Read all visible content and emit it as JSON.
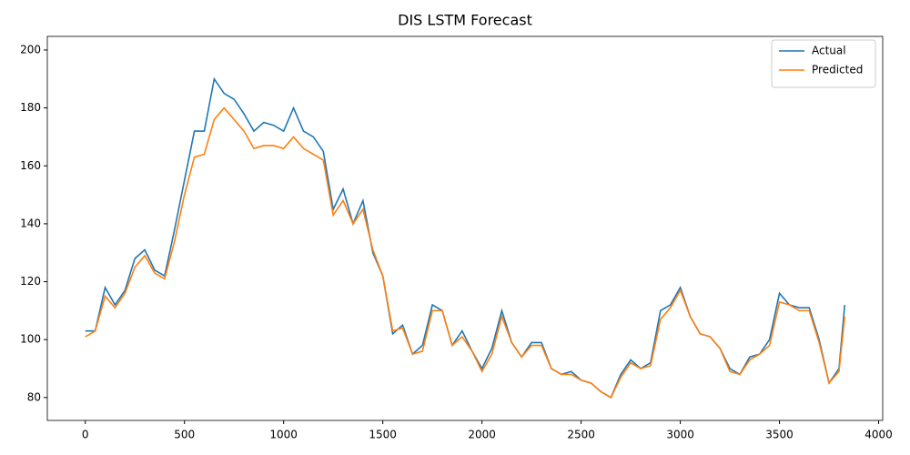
{
  "chart_data": {
    "type": "line",
    "title": "DIS LSTM Forecast",
    "x": [
      0,
      50,
      100,
      150,
      200,
      250,
      300,
      350,
      400,
      450,
      500,
      550,
      600,
      650,
      700,
      750,
      800,
      850,
      900,
      950,
      1000,
      1050,
      1100,
      1150,
      1200,
      1250,
      1300,
      1350,
      1400,
      1450,
      1500,
      1550,
      1600,
      1650,
      1700,
      1750,
      1800,
      1850,
      1900,
      1950,
      2000,
      2050,
      2100,
      2150,
      2200,
      2250,
      2300,
      2350,
      2400,
      2450,
      2500,
      2550,
      2600,
      2650,
      2700,
      2750,
      2800,
      2850,
      2900,
      2950,
      3000,
      3050,
      3100,
      3150,
      3200,
      3250,
      3300,
      3350,
      3400,
      3450,
      3500,
      3550,
      3600,
      3650,
      3700,
      3750,
      3800,
      3829
    ],
    "series": [
      {
        "name": "Actual",
        "color": "#1f77b4",
        "values": [
          103,
          103,
          118,
          112,
          117,
          128,
          131,
          124,
          122,
          138,
          155,
          172,
          172,
          190,
          185,
          183,
          178,
          172,
          175,
          174,
          172,
          180,
          172,
          170,
          165,
          145,
          152,
          140,
          148,
          130,
          122,
          102,
          105,
          95,
          98,
          112,
          110,
          98,
          103,
          96,
          90,
          97,
          110,
          99,
          94,
          99,
          99,
          90,
          88,
          89,
          86,
          85,
          82,
          80,
          88,
          93,
          90,
          92,
          110,
          112,
          118,
          108,
          102,
          101,
          97,
          90,
          88,
          94,
          95,
          100,
          116,
          112,
          111,
          111,
          100,
          85,
          90,
          112
        ]
      },
      {
        "name": "Predicted",
        "color": "#ff7f0e",
        "values": [
          101,
          103,
          115,
          111,
          116,
          125,
          129,
          123,
          121,
          134,
          150,
          163,
          164,
          176,
          180,
          176,
          172,
          166,
          167,
          167,
          166,
          170,
          166,
          164,
          162,
          143,
          148,
          140,
          145,
          131,
          122,
          103,
          104,
          95,
          96,
          110,
          110,
          98,
          101,
          96,
          89,
          95,
          108,
          99,
          94,
          98,
          98,
          90,
          88,
          88,
          86,
          85,
          82,
          80,
          87,
          92,
          90,
          91,
          107,
          111,
          117,
          108,
          102,
          101,
          97,
          89,
          88,
          93,
          95,
          98,
          113,
          112,
          110,
          110,
          99,
          85,
          89,
          108
        ]
      }
    ],
    "xlim": [
      -191.45,
      4020.45
    ],
    "ylim": [
      72.1,
      204.7
    ],
    "xticks": [
      0,
      500,
      1000,
      1500,
      2000,
      2500,
      3000,
      3500,
      4000
    ],
    "yticks": [
      80,
      100,
      120,
      140,
      160,
      180,
      200
    ],
    "grid": false,
    "legend": "upper right"
  }
}
